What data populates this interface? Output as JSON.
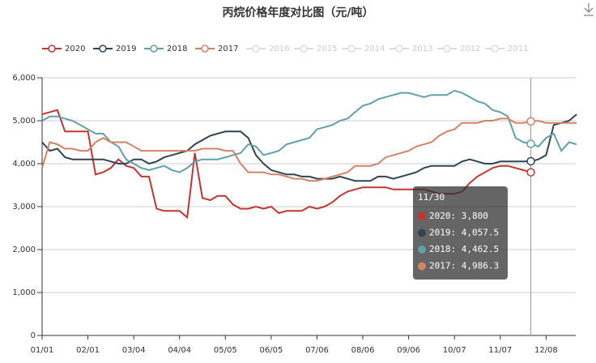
{
  "chart_data": {
    "type": "line",
    "title": "丙烷价格年度对比图（元/吨）",
    "categories": [
      "01/01",
      null,
      null,
      null,
      null,
      null,
      "02/01",
      null,
      null,
      null,
      null,
      null,
      "03/04",
      null,
      null,
      null,
      null,
      null,
      "04/04",
      null,
      null,
      null,
      null,
      null,
      "05/05",
      null,
      null,
      null,
      null,
      null,
      "06/05",
      null,
      null,
      null,
      null,
      null,
      "07/06",
      null,
      null,
      null,
      null,
      null,
      "08/06",
      null,
      null,
      null,
      null,
      null,
      "09/06",
      null,
      null,
      null,
      null,
      null,
      "10/07",
      null,
      null,
      null,
      null,
      null,
      "11/07",
      null,
      null,
      null,
      null,
      null,
      "12/08",
      null,
      null,
      null,
      null
    ],
    "series": [
      {
        "name": "2020",
        "color": "#c23531",
        "values": [
          5150,
          5200,
          5250,
          4750,
          4750,
          4750,
          4750,
          3750,
          3800,
          3900,
          4100,
          3950,
          3900,
          3700,
          3700,
          2950,
          2900,
          2900,
          2900,
          2750,
          4250,
          3200,
          3150,
          3250,
          3250,
          3050,
          2950,
          2950,
          3000,
          2950,
          3000,
          2850,
          2900,
          2900,
          2900,
          3000,
          2950,
          3000,
          3100,
          3250,
          3350,
          3400,
          3450,
          3450,
          3450,
          3450,
          3400,
          3400,
          3400,
          3400,
          3400,
          3350,
          3300,
          3300,
          3300,
          3350,
          3550,
          3700,
          3800,
          3900,
          3950,
          3950,
          3900,
          3850,
          3800,
          null,
          null,
          null,
          null,
          null,
          null
        ]
      },
      {
        "name": "2019",
        "color": "#2f4554",
        "values": [
          4500,
          4300,
          4350,
          4150,
          4100,
          4100,
          4100,
          4100,
          4100,
          4050,
          4000,
          4000,
          4100,
          4100,
          4000,
          4050,
          4150,
          4200,
          4250,
          4300,
          4450,
          4550,
          4650,
          4700,
          4750,
          4750,
          4750,
          4600,
          4200,
          4000,
          3850,
          3800,
          3750,
          3750,
          3700,
          3700,
          3650,
          3650,
          3650,
          3700,
          3650,
          3600,
          3600,
          3600,
          3700,
          3700,
          3650,
          3700,
          3750,
          3800,
          3900,
          3950,
          3950,
          3950,
          3950,
          4050,
          4100,
          4050,
          4000,
          4000,
          4050,
          4050,
          4050,
          4050,
          4057.5,
          4100,
          4200,
          4900,
          4950,
          5000,
          5150
        ]
      },
      {
        "name": "2018",
        "color": "#61a0a8",
        "values": [
          5000,
          5100,
          5100,
          5050,
          5000,
          4900,
          4800,
          4700,
          4700,
          4500,
          4400,
          4100,
          4000,
          3900,
          3850,
          3900,
          3950,
          3850,
          3800,
          3900,
          4050,
          4100,
          4100,
          4100,
          4150,
          4200,
          4250,
          4450,
          4400,
          4200,
          4250,
          4300,
          4450,
          4500,
          4550,
          4600,
          4800,
          4850,
          4900,
          5000,
          5050,
          5200,
          5350,
          5400,
          5500,
          5550,
          5600,
          5650,
          5650,
          5600,
          5550,
          5600,
          5600,
          5600,
          5700,
          5650,
          5550,
          5450,
          5400,
          5250,
          5200,
          5100,
          4600,
          4500,
          4462.5,
          4400,
          4600,
          4700,
          4300,
          4500,
          4450
        ]
      },
      {
        "name": "2017",
        "color": "#d48265",
        "values": [
          3900,
          4500,
          4450,
          4350,
          4350,
          4300,
          4300,
          4500,
          4600,
          4500,
          4500,
          4500,
          4400,
          4300,
          4300,
          4300,
          4300,
          4300,
          4300,
          4300,
          4300,
          4350,
          4350,
          4350,
          4300,
          4300,
          4000,
          3800,
          3800,
          3800,
          3750,
          3750,
          3700,
          3650,
          3650,
          3600,
          3600,
          3650,
          3700,
          3750,
          3800,
          3950,
          3950,
          3950,
          4000,
          4150,
          4200,
          4250,
          4300,
          4400,
          4450,
          4500,
          4650,
          4750,
          4800,
          4950,
          4950,
          4950,
          5000,
          5000,
          5050,
          5050,
          4950,
          4950,
          4986.3,
          5000,
          4950,
          4950,
          4950,
          4950,
          4950
        ]
      }
    ],
    "legend_inactive": [
      "2016",
      "2015",
      "2014",
      "2013",
      "2012",
      "2011"
    ],
    "ylim": [
      0,
      6000
    ],
    "yticks": [
      0,
      {
        "value": 1000,
        "label": "1,000"
      },
      {
        "value": 2000,
        "label": "2,000"
      },
      {
        "value": 3000,
        "label": "3,000"
      },
      {
        "value": 4000,
        "label": "4,000"
      },
      {
        "value": 5000,
        "label": "5,000"
      },
      {
        "value": 6000,
        "label": "6,000"
      }
    ],
    "grid": true,
    "tooltip": {
      "title": "11/30",
      "items": [
        "2020: 3,800",
        "2019: 4,057.5",
        "2018: 4,462.5",
        "2017: 4,986.3"
      ]
    }
  }
}
